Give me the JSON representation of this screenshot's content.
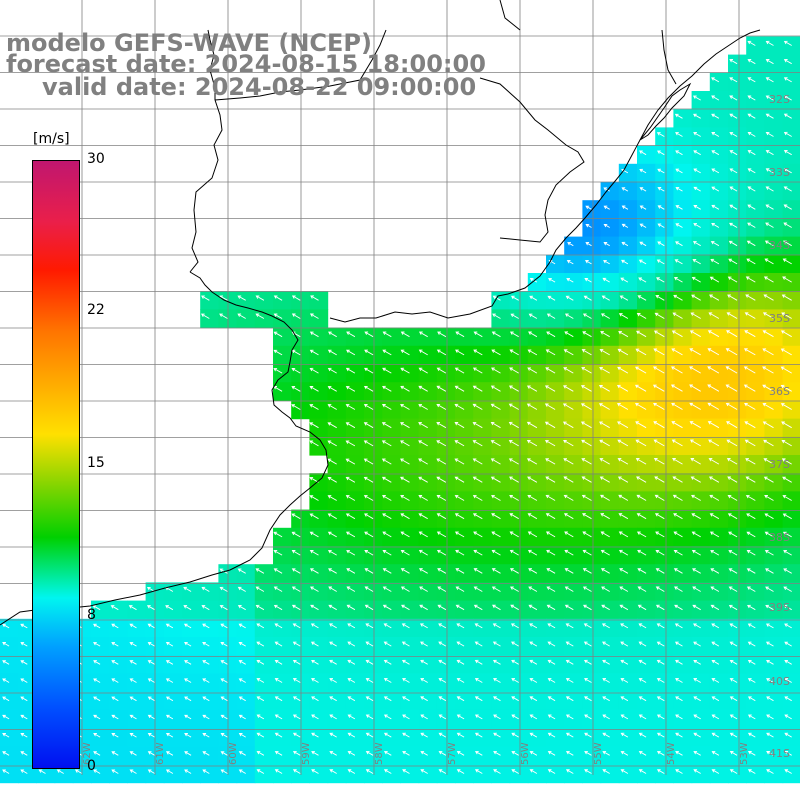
{
  "title": {
    "line1": "modelo GEFS-WAVE (NCEP)",
    "line2": "forecast date: 2024-08-15 18:00:00",
    "line3": "valid date: 2024-08-22 09:00:00"
  },
  "colorbar": {
    "units": "[m/s]",
    "ticks": [
      "30",
      "22",
      "15",
      "8",
      "0"
    ],
    "min": 0,
    "max": 30
  },
  "lat_labels": [
    "32S",
    "33S",
    "34S",
    "35S",
    "36S",
    "37S",
    "38S",
    "39S",
    "40S",
    "41S"
  ],
  "lon_labels": [
    "62W",
    "61W",
    "60W",
    "59W",
    "58W",
    "57W",
    "56W",
    "55W",
    "54W",
    "53W"
  ],
  "colors": {
    "land": "#ffffff",
    "grid": "#808080",
    "coast": "#000000",
    "arrows": "#ffffff",
    "title": "#808080"
  }
}
